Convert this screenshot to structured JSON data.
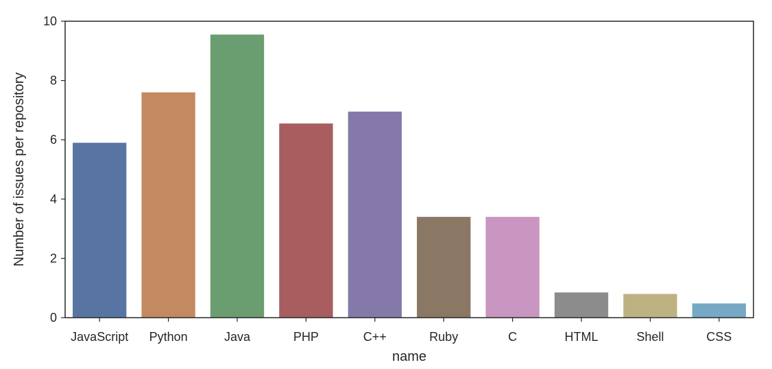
{
  "chart_data": {
    "type": "bar",
    "title": "",
    "xlabel": "name",
    "ylabel": "Number of issues per repository",
    "categories": [
      "JavaScript",
      "Python",
      "Java",
      "PHP",
      "C++",
      "Ruby",
      "C",
      "HTML",
      "Shell",
      "CSS"
    ],
    "values": [
      5.9,
      7.6,
      9.55,
      6.55,
      6.95,
      3.4,
      3.4,
      0.85,
      0.8,
      0.48
    ],
    "colors": [
      "#5874a3",
      "#c38a61",
      "#6a9e70",
      "#a85d5e",
      "#8479a8",
      "#8a7764",
      "#c896c0",
      "#8c8c8c",
      "#bdb281",
      "#75a9c5"
    ],
    "ylim": [
      0,
      10
    ],
    "yticks": [
      0,
      2,
      4,
      6,
      8,
      10
    ],
    "grid": false,
    "legend": "none"
  }
}
